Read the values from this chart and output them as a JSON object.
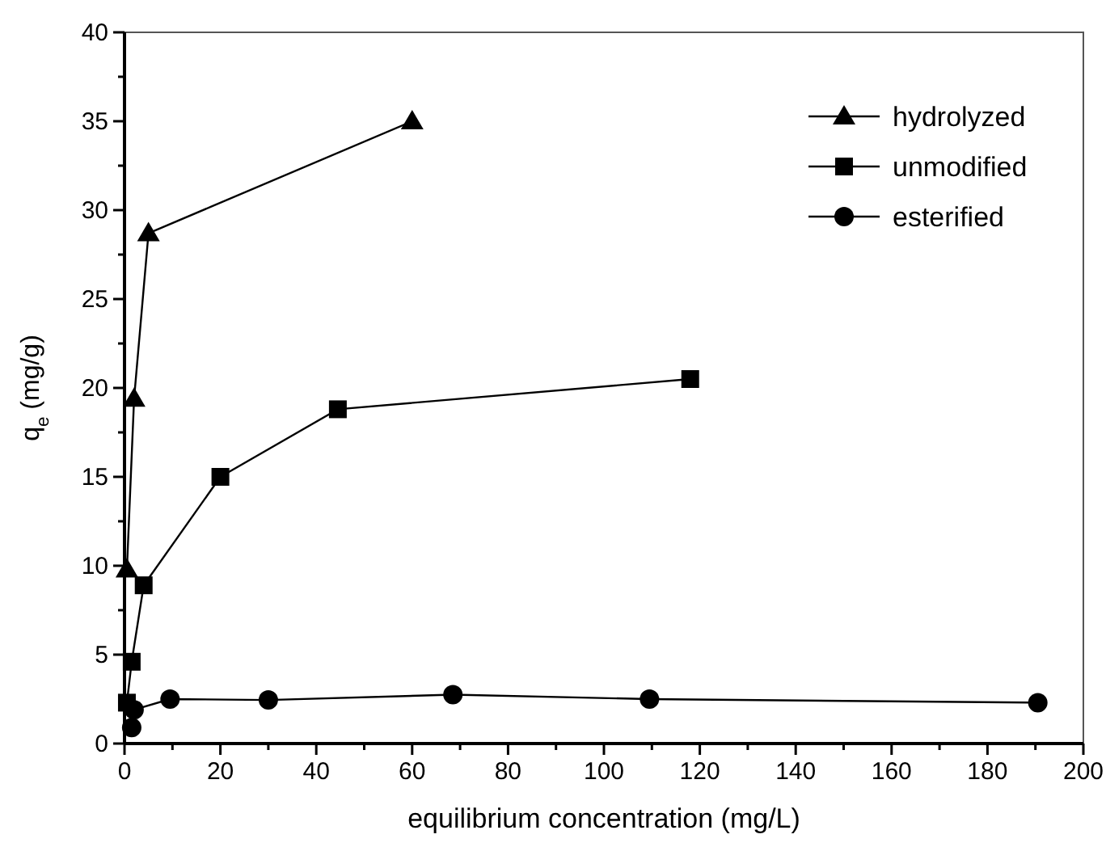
{
  "chart_data": {
    "type": "line",
    "xlabel": "equilibrium concentration (mg/L)",
    "ylabel": "q$_{e}$ (mg/g)",
    "xlim": [
      0,
      200
    ],
    "ylim": [
      0,
      40
    ],
    "xticks": [
      0,
      {
        "value": 10,
        "label": null
      },
      20,
      {
        "value": 30,
        "label": null
      },
      40,
      {
        "value": 50,
        "label": null
      },
      60,
      {
        "value": 70,
        "label": null
      },
      80,
      {
        "value": 90,
        "label": null
      },
      100,
      {
        "value": 110,
        "label": null
      },
      120,
      {
        "value": 130,
        "label": null
      },
      140,
      {
        "value": 150,
        "label": null
      },
      160,
      {
        "value": 170,
        "label": null
      },
      180,
      {
        "value": 190,
        "label": null
      },
      200
    ],
    "yticks": [
      0,
      {
        "value": 2.5,
        "label": null
      },
      5,
      {
        "value": 7.5,
        "label": null
      },
      10,
      {
        "value": 12.5,
        "label": null
      },
      15,
      {
        "value": 17.5,
        "label": null
      },
      20,
      {
        "value": 22.5,
        "label": null
      },
      25,
      {
        "value": 27.5,
        "label": null
      },
      30,
      {
        "value": 32.5,
        "label": null
      },
      35,
      {
        "value": 37.5,
        "label": null
      },
      40
    ],
    "legend": "top right",
    "grid": false,
    "series": [
      {
        "name": "hydrolyzed",
        "color": "#000000",
        "marker": "triangle",
        "x": [
          0.5,
          2,
          5,
          60
        ],
        "values": [
          9.8,
          19.4,
          28.7,
          35
        ]
      },
      {
        "name": "unmodified",
        "color": "#000000",
        "marker": "square",
        "x": [
          0.5,
          1.5,
          4,
          20,
          44.5,
          118
        ],
        "values": [
          2.3,
          4.6,
          8.9,
          15,
          18.8,
          20.5
        ]
      },
      {
        "name": "esterified",
        "color": "#000000",
        "marker": "circle",
        "x": [
          1.5,
          2,
          9.5,
          30,
          68.5,
          109.5,
          190.5
        ],
        "values": [
          0.9,
          1.9,
          2.5,
          2.45,
          2.75,
          2.5,
          2.3
        ]
      }
    ]
  }
}
